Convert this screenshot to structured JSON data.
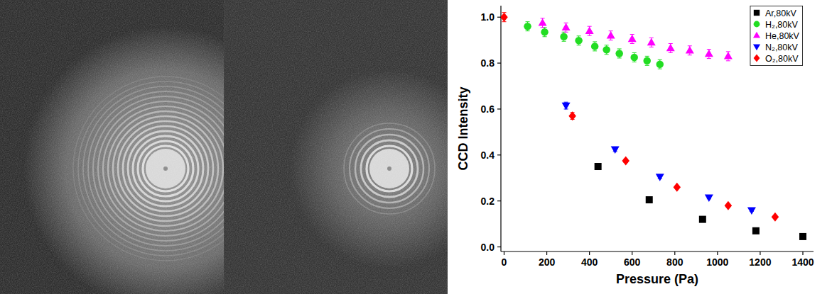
{
  "chart_data": {
    "type": "scatter",
    "x_label": "Pressure (Pa)",
    "y_label": "CCD Intensity",
    "xlim": [
      -15,
      1450
    ],
    "ylim": [
      -0.02,
      1.05
    ],
    "xticks": [
      0,
      200,
      400,
      600,
      800,
      1000,
      1200,
      1400
    ],
    "yticks": [
      {
        "value": 0,
        "label": "0.0"
      },
      {
        "value": 0.2,
        "label": "0.2"
      },
      {
        "value": 0.4,
        "label": "0.4"
      },
      {
        "value": 0.6,
        "label": "0.6"
      },
      {
        "value": 0.8,
        "label": "0.8"
      },
      {
        "value": 1,
        "label": "1.0"
      }
    ],
    "grid": false,
    "legend": "upper right",
    "series": [
      {
        "name": "Ar,80kV",
        "color": "#000000",
        "marker": "square",
        "x": [
          440,
          680,
          930,
          1180,
          1400
        ],
        "values": [
          0.35,
          0.205,
          0.12,
          0.07,
          0.045
        ],
        "errors": [
          0.005,
          0.005,
          0.005,
          0.004,
          0.003
        ]
      },
      {
        "name": "H₂,80kV",
        "color": "#22dd22",
        "marker": "circle",
        "x": [
          110,
          190,
          280,
          350,
          425,
          480,
          540,
          610,
          670,
          730
        ],
        "values": [
          0.96,
          0.935,
          0.915,
          0.898,
          0.873,
          0.858,
          0.842,
          0.825,
          0.81,
          0.795
        ],
        "errors": [
          0.02,
          0.02,
          0.02,
          0.02,
          0.02,
          0.02,
          0.02,
          0.02,
          0.02,
          0.02
        ]
      },
      {
        "name": "He,80kV",
        "color": "#ff00ff",
        "marker": "triangle-up",
        "x": [
          180,
          290,
          400,
          500,
          600,
          690,
          780,
          870,
          960,
          1050
        ],
        "values": [
          0.975,
          0.955,
          0.94,
          0.92,
          0.905,
          0.89,
          0.865,
          0.855,
          0.84,
          0.83
        ],
        "errors": [
          0.02,
          0.02,
          0.02,
          0.02,
          0.02,
          0.02,
          0.02,
          0.02,
          0.02,
          0.02
        ]
      },
      {
        "name": "N₂,80kV",
        "color": "#0000ff",
        "marker": "triangle-down",
        "x": [
          290,
          520,
          730,
          960,
          1160
        ],
        "values": [
          0.615,
          0.425,
          0.305,
          0.215,
          0.16
        ],
        "errors": [
          0.015,
          0.01,
          0.008,
          0.006,
          0.005
        ]
      },
      {
        "name": "O₂,80kV",
        "color": "#ff0000",
        "marker": "diamond",
        "x": [
          0,
          320,
          570,
          810,
          1050,
          1270
        ],
        "values": [
          1.0,
          0.57,
          0.375,
          0.26,
          0.18,
          0.13
        ],
        "errors": [
          0.02,
          0.015,
          0.008,
          0.006,
          0.005,
          0.005
        ]
      }
    ]
  }
}
